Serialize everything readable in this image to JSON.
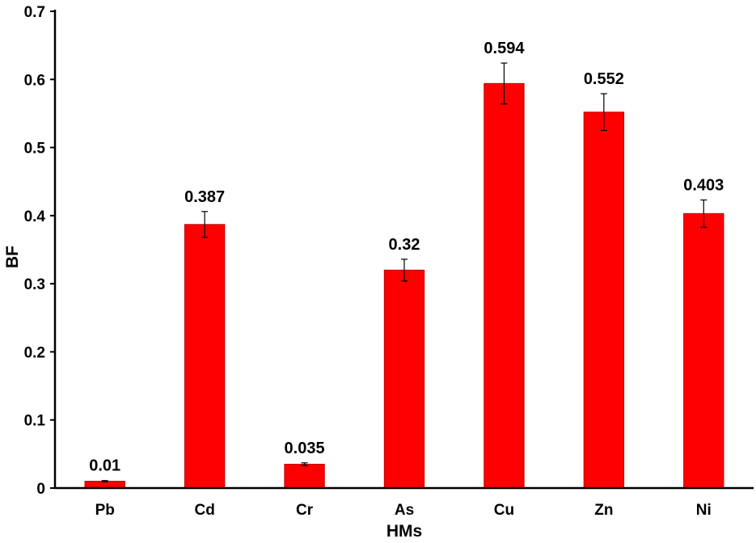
{
  "chart_data": {
    "type": "bar",
    "title": "",
    "xlabel": "HMs",
    "ylabel": "BF",
    "ylim": [
      0,
      0.7
    ],
    "yticks": [
      "0",
      "0.1",
      "0.2",
      "0.3",
      "0.4",
      "0.5",
      "0.6",
      "0.7"
    ],
    "categories": [
      "Pb",
      "Cd",
      "Cr",
      "As",
      "Cu",
      "Zn",
      "Ni"
    ],
    "values": [
      0.01,
      0.387,
      0.035,
      0.32,
      0.594,
      0.552,
      0.403
    ],
    "data_labels": [
      "0.01",
      "0.387",
      "0.035",
      "0.32",
      "0.594",
      "0.552",
      "0.403"
    ],
    "errors": [
      0.001,
      0.019,
      0.002,
      0.016,
      0.03,
      0.027,
      0.02
    ],
    "bar_color": "#ff0000",
    "bar_edge_color": "#c00000",
    "grid": false,
    "legend": "none"
  }
}
